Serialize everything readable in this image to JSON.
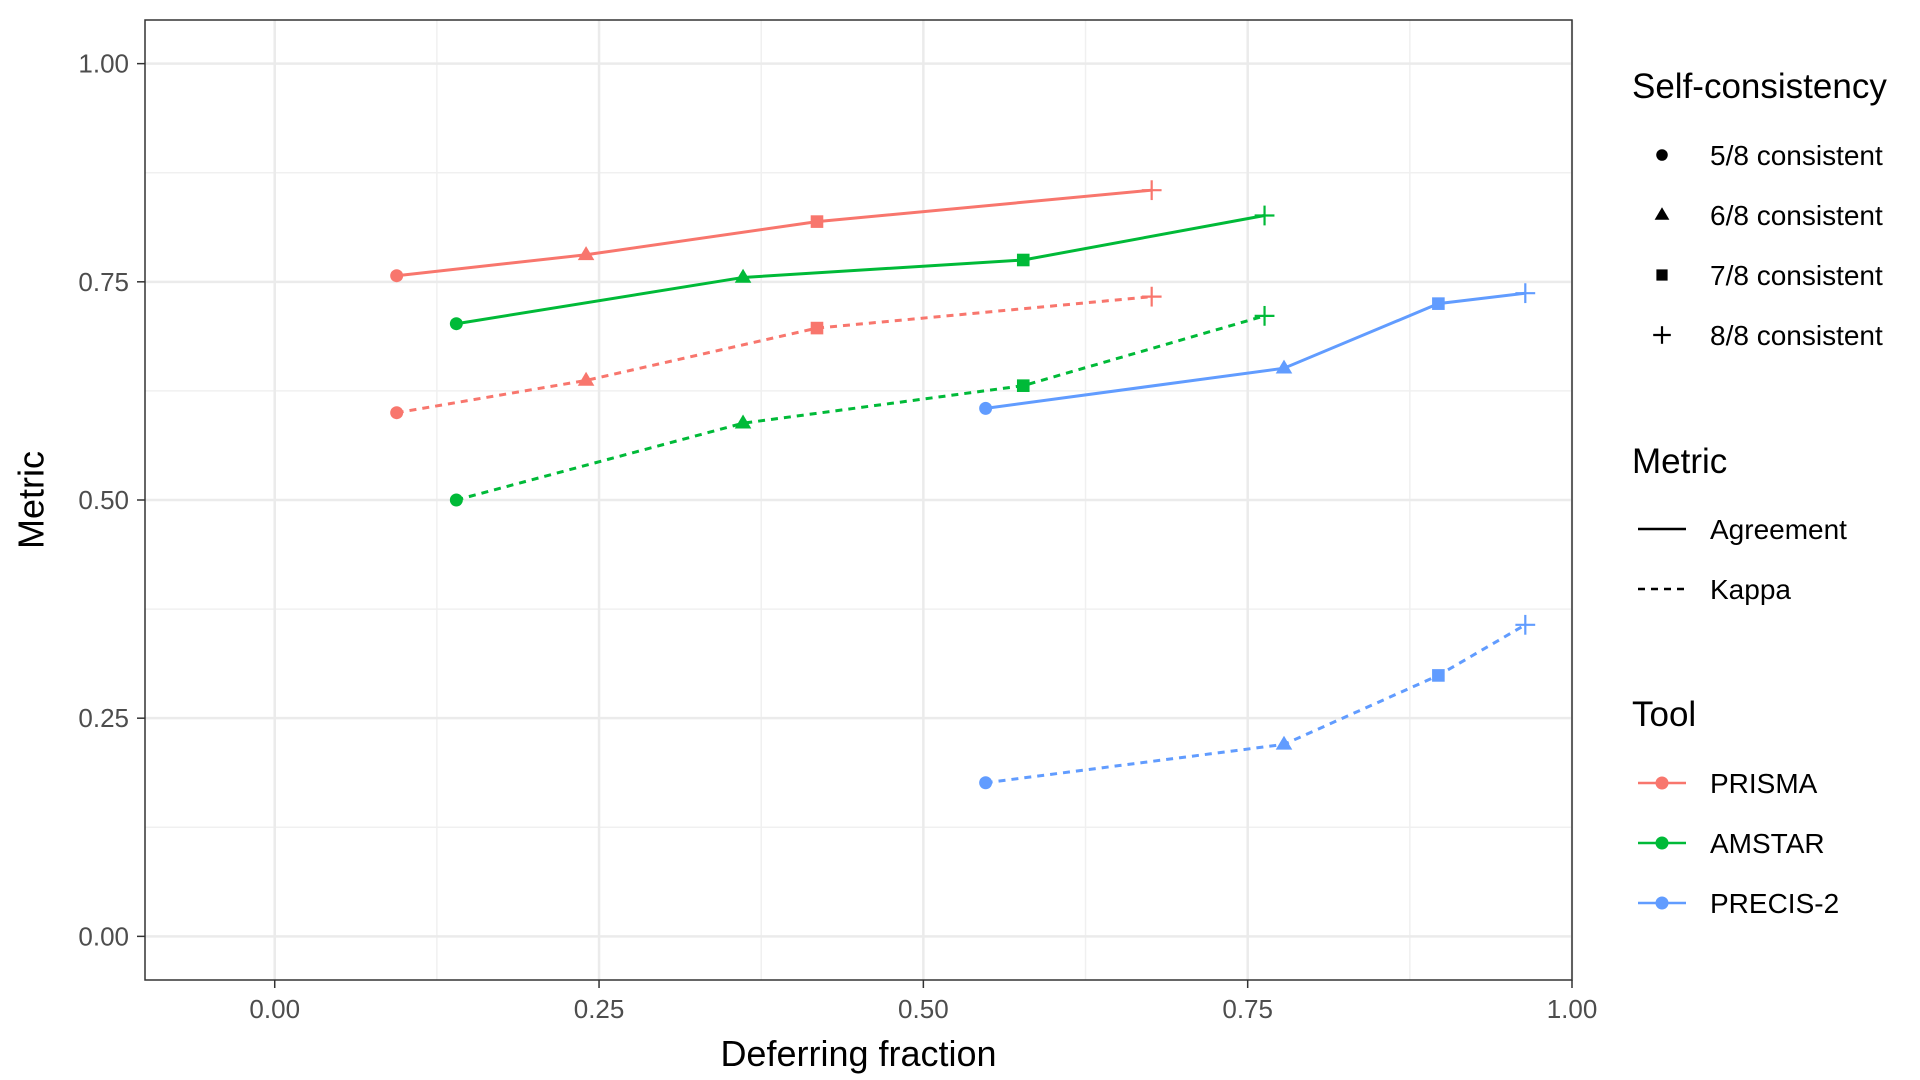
{
  "chart_data": {
    "type": "line",
    "xlabel": "Deferring fraction",
    "ylabel": "Metric",
    "xlim": [
      -0.1,
      1.0
    ],
    "ylim": [
      -0.05,
      1.05
    ],
    "x_ticks": [
      0,
      0.25,
      0.5,
      0.75,
      1.0
    ],
    "x_tick_labels": [
      "0.00",
      "0.25",
      "0.50",
      "0.75",
      "1.00"
    ],
    "y_ticks": [
      0,
      0.25,
      0.5,
      0.75,
      1.0
    ],
    "y_tick_labels": [
      "0.00",
      "0.25",
      "0.50",
      "0.75",
      "1.00"
    ],
    "grid": true,
    "legend_placement": "right",
    "shape_legend": {
      "title": "Self-consistency",
      "items": [
        {
          "label": "5/8 consistent",
          "shape": "circle"
        },
        {
          "label": "6/8 consistent",
          "shape": "triangle"
        },
        {
          "label": "7/8 consistent",
          "shape": "square"
        },
        {
          "label": "8/8 consistent",
          "shape": "plus"
        }
      ]
    },
    "linetype_legend": {
      "title": "Metric",
      "items": [
        {
          "label": "Agreement",
          "dash": "solid"
        },
        {
          "label": "Kappa",
          "dash": "dashed"
        }
      ]
    },
    "color_legend": {
      "title": "Tool",
      "items": [
        {
          "label": "PRISMA",
          "color": "#F8766D"
        },
        {
          "label": "AMSTAR",
          "color": "#00BA38"
        },
        {
          "label": "PRECIS-2",
          "color": "#619CFF"
        }
      ]
    },
    "series": [
      {
        "tool": "PRISMA",
        "metric": "Agreement",
        "color": "#F8766D",
        "dash": "solid",
        "x": [
          0.094,
          0.24,
          0.418,
          0.676
        ],
        "y": [
          0.757,
          0.781,
          0.819,
          0.855
        ]
      },
      {
        "tool": "PRISMA",
        "metric": "Kappa",
        "color": "#F8766D",
        "dash": "dashed",
        "x": [
          0.094,
          0.24,
          0.418,
          0.676
        ],
        "y": [
          0.6,
          0.637,
          0.697,
          0.733
        ]
      },
      {
        "tool": "AMSTAR",
        "metric": "Agreement",
        "color": "#00BA38",
        "dash": "solid",
        "x": [
          0.14,
          0.361,
          0.577,
          0.763
        ],
        "y": [
          0.702,
          0.755,
          0.775,
          0.826
        ]
      },
      {
        "tool": "AMSTAR",
        "metric": "Kappa",
        "color": "#00BA38",
        "dash": "dashed",
        "x": [
          0.14,
          0.361,
          0.577,
          0.763
        ],
        "y": [
          0.5,
          0.588,
          0.631,
          0.711
        ]
      },
      {
        "tool": "PRECIS-2",
        "metric": "Agreement",
        "color": "#619CFF",
        "dash": "solid",
        "x": [
          0.548,
          0.778,
          0.897,
          0.964
        ],
        "y": [
          0.605,
          0.651,
          0.725,
          0.737
        ]
      },
      {
        "tool": "PRECIS-2",
        "metric": "Kappa",
        "color": "#619CFF",
        "dash": "dashed",
        "x": [
          0.548,
          0.778,
          0.897,
          0.964
        ],
        "y": [
          0.176,
          0.22,
          0.299,
          0.357
        ]
      }
    ],
    "point_shapes": [
      "circle",
      "triangle",
      "square",
      "plus"
    ]
  }
}
